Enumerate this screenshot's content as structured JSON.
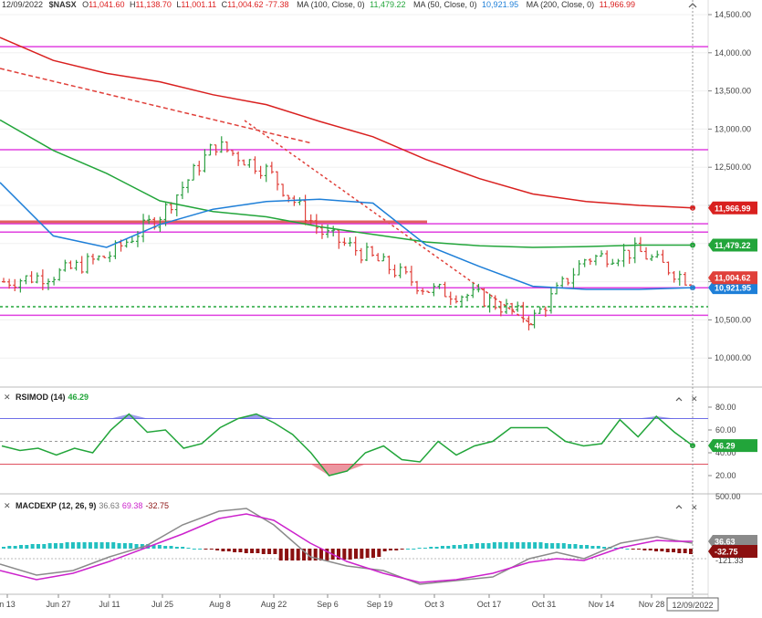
{
  "header": {
    "date": "12/09/2022",
    "symbol": "$NASX",
    "o_label": "O",
    "o_value": "11,041.60",
    "h_label": "H",
    "h_value": "11,138.70",
    "l_label": "L",
    "l_value": "11,001.11",
    "c_label": "C",
    "c_value": "11,004.62",
    "change": "-77.38",
    "ma100_label": "MA (100, Close, 0)",
    "ma100_value": "11,479.22",
    "ma50_label": "MA (50, Close, 0)",
    "ma50_value": "10,921.95",
    "ma200_label": "MA (200, Close, 0)",
    "ma200_value": "11,966.99"
  },
  "colors": {
    "up": "#2ea043",
    "down": "#e0403a",
    "ma50": "#1e7fd8",
    "ma100": "#22a53a",
    "ma200": "#d9201f",
    "magenta": "#e040e0",
    "rsi": "#22a53a",
    "macd": "#8a8a8a",
    "signal": "#cc22cc",
    "hist_pos": "#22c0c0",
    "hist_neg": "#8b1010"
  },
  "price_panel": {
    "y_ticks": [
      "14,500.00",
      "14,000.00",
      "13,500.00",
      "13,000.00",
      "12,500.00",
      "12,000.00",
      "11,500.00",
      "11,000.00",
      "10,500.00",
      "10,000.00"
    ],
    "badges": {
      "ma200": "11,966.99",
      "ma100": "11,479.22",
      "close": "11,004.62",
      "ma50": "10,921.95"
    }
  },
  "rsi_panel": {
    "title": "RSIMOD (14)",
    "value": "46.29",
    "y_ticks": [
      "80.00",
      "60.00",
      "40.00",
      "20.00"
    ],
    "badge": "46.29"
  },
  "macd_panel": {
    "title": "MACDEXP (12, 26, 9)",
    "v1": "36.63",
    "v2": "69.38",
    "v3": "-32.75",
    "top_tick": "500.00",
    "badges": {
      "macd": "36.63",
      "hist": "-32.75",
      "low": "-121.33"
    }
  },
  "x_axis": {
    "labels": [
      "n 13",
      "Jun 27",
      "Jul 11",
      "Jul 25",
      "Aug 8",
      "Aug 22",
      "Sep 6",
      "Sep 19",
      "Oct 3",
      "Oct 17",
      "Oct 31",
      "Nov 14",
      "Nov 28"
    ],
    "current": "12/09/2022"
  },
  "chart_data": {
    "type": "line",
    "title": "$NASX",
    "ylim": [
      9850,
      14650
    ],
    "x": [
      "Jun 13",
      "Jun 27",
      "Jul 11",
      "Jul 25",
      "Aug 8",
      "Aug 22",
      "Sep 6",
      "Sep 19",
      "Oct 3",
      "Oct 17",
      "Oct 31",
      "Nov 14",
      "Nov 28",
      "Dec 9"
    ],
    "series": [
      {
        "name": "$NASX",
        "values": [
          11000,
          11100,
          11350,
          11900,
          12800,
          12450,
          11650,
          11300,
          10900,
          10800,
          10500,
          11300,
          11400,
          11004.62
        ]
      },
      {
        "name": "MA (50, Close, 0)",
        "values": [
          12300,
          11600,
          11450,
          11750,
          11950,
          12050,
          12080,
          12030,
          11480,
          11200,
          10940,
          10900,
          10900,
          10921.95
        ]
      },
      {
        "name": "MA (100, Close, 0)",
        "values": [
          13120,
          12720,
          12420,
          12060,
          11920,
          11850,
          11720,
          11620,
          11520,
          11470,
          11450,
          11460,
          11480,
          11479.22
        ]
      },
      {
        "name": "MA (200, Close, 0)",
        "values": [
          14200,
          13900,
          13730,
          13620,
          13450,
          13320,
          13100,
          12900,
          12600,
          12350,
          12150,
          12050,
          12000,
          11966.99
        ]
      }
    ],
    "horizontal_lines": [
      14080,
      12730,
      11760,
      11650,
      10920,
      10560
    ],
    "rsi": {
      "name": "RSIMOD (14)",
      "overbought": 70,
      "oversold": 30,
      "values": [
        46,
        42,
        44,
        38,
        44,
        40,
        60,
        74,
        58,
        60,
        44,
        48,
        62,
        70,
        74,
        66,
        56,
        40,
        20,
        24,
        40,
        46,
        34,
        32,
        50,
        38,
        46,
        50,
        62,
        62,
        62,
        50,
        46,
        48,
        69,
        54,
        72,
        58,
        46.29
      ]
    },
    "macd": {
      "name": "MACDEXP (12, 26, 9)",
      "macd": 36.63,
      "signal": 69.38,
      "histogram": -32.75
    }
  }
}
